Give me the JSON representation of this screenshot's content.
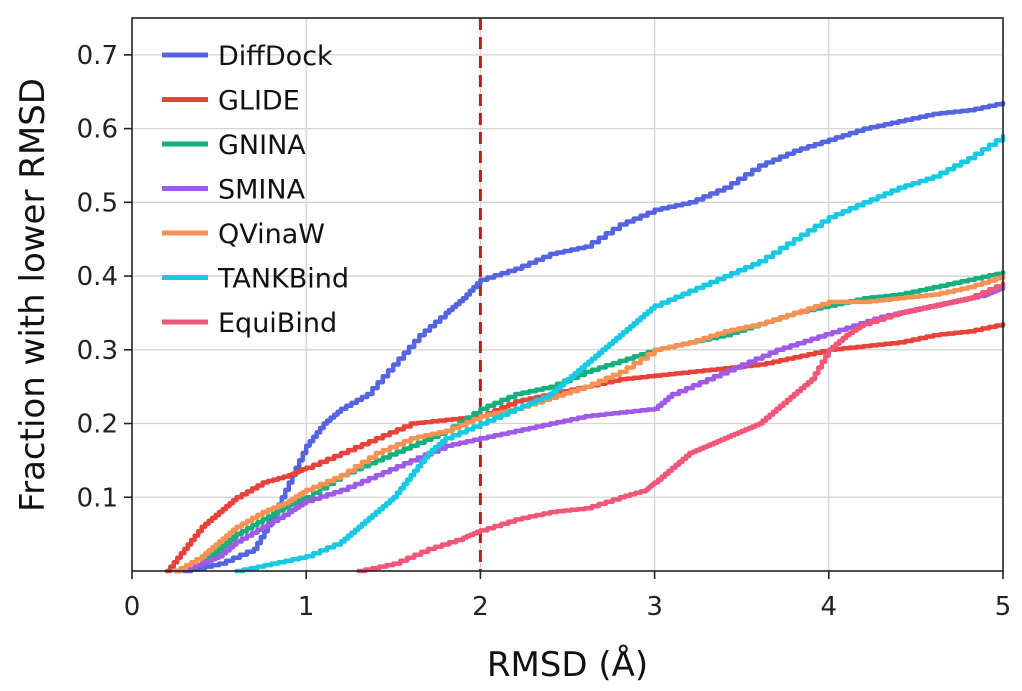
{
  "chart_data": {
    "type": "line",
    "xlabel": "RMSD (Å)",
    "ylabel": "Fraction with lower RMSD",
    "xlim": [
      0,
      5
    ],
    "ylim": [
      0,
      0.75
    ],
    "x_ticks": [
      "0",
      "1",
      "2",
      "3",
      "4",
      "5"
    ],
    "y_ticks": [
      "0.1",
      "0.2",
      "0.3",
      "0.4",
      "0.5",
      "0.6",
      "0.7"
    ],
    "grid": true,
    "legend_position": "top-left",
    "reference_line": {
      "x": 2,
      "style": "dashed",
      "color": "#b22222"
    },
    "series": [
      {
        "name": "DiffDock",
        "color": "#5564e0",
        "points": [
          [
            0.3,
            0.0
          ],
          [
            0.5,
            0.01
          ],
          [
            0.7,
            0.03
          ],
          [
            0.8,
            0.07
          ],
          [
            0.9,
            0.12
          ],
          [
            1.0,
            0.17
          ],
          [
            1.1,
            0.2
          ],
          [
            1.2,
            0.22
          ],
          [
            1.35,
            0.24
          ],
          [
            1.5,
            0.28
          ],
          [
            1.65,
            0.32
          ],
          [
            1.8,
            0.35
          ],
          [
            1.9,
            0.37
          ],
          [
            2.0,
            0.395
          ],
          [
            2.2,
            0.41
          ],
          [
            2.4,
            0.43
          ],
          [
            2.6,
            0.44
          ],
          [
            2.8,
            0.47
          ],
          [
            3.0,
            0.49
          ],
          [
            3.2,
            0.5
          ],
          [
            3.4,
            0.52
          ],
          [
            3.6,
            0.55
          ],
          [
            3.8,
            0.57
          ],
          [
            4.0,
            0.585
          ],
          [
            4.2,
            0.6
          ],
          [
            4.4,
            0.61
          ],
          [
            4.6,
            0.62
          ],
          [
            4.8,
            0.625
          ],
          [
            5.0,
            0.635
          ]
        ]
      },
      {
        "name": "GLIDE",
        "color": "#e8433a",
        "points": [
          [
            0.2,
            0.0
          ],
          [
            0.3,
            0.03
          ],
          [
            0.4,
            0.06
          ],
          [
            0.5,
            0.08
          ],
          [
            0.6,
            0.1
          ],
          [
            0.75,
            0.12
          ],
          [
            0.9,
            0.13
          ],
          [
            1.0,
            0.14
          ],
          [
            1.2,
            0.16
          ],
          [
            1.4,
            0.18
          ],
          [
            1.6,
            0.2
          ],
          [
            1.8,
            0.205
          ],
          [
            2.0,
            0.21
          ],
          [
            2.2,
            0.23
          ],
          [
            2.4,
            0.24
          ],
          [
            2.6,
            0.25
          ],
          [
            2.8,
            0.26
          ],
          [
            3.0,
            0.265
          ],
          [
            3.2,
            0.27
          ],
          [
            3.4,
            0.275
          ],
          [
            3.6,
            0.28
          ],
          [
            3.8,
            0.29
          ],
          [
            4.0,
            0.3
          ],
          [
            4.2,
            0.305
          ],
          [
            4.4,
            0.31
          ],
          [
            4.6,
            0.32
          ],
          [
            4.8,
            0.325
          ],
          [
            5.0,
            0.335
          ]
        ]
      },
      {
        "name": "GNINA",
        "color": "#16b07e",
        "points": [
          [
            0.25,
            0.0
          ],
          [
            0.4,
            0.01
          ],
          [
            0.5,
            0.03
          ],
          [
            0.6,
            0.05
          ],
          [
            0.75,
            0.07
          ],
          [
            0.9,
            0.09
          ],
          [
            1.0,
            0.1
          ],
          [
            1.2,
            0.13
          ],
          [
            1.4,
            0.15
          ],
          [
            1.6,
            0.17
          ],
          [
            1.8,
            0.19
          ],
          [
            2.0,
            0.22
          ],
          [
            2.2,
            0.24
          ],
          [
            2.4,
            0.25
          ],
          [
            2.6,
            0.27
          ],
          [
            2.8,
            0.285
          ],
          [
            3.0,
            0.3
          ],
          [
            3.2,
            0.31
          ],
          [
            3.4,
            0.32
          ],
          [
            3.6,
            0.335
          ],
          [
            3.8,
            0.35
          ],
          [
            4.0,
            0.36
          ],
          [
            4.2,
            0.37
          ],
          [
            4.4,
            0.375
          ],
          [
            4.6,
            0.385
          ],
          [
            4.8,
            0.395
          ],
          [
            5.0,
            0.405
          ]
        ]
      },
      {
        "name": "SMINA",
        "color": "#a05ae8",
        "points": [
          [
            0.25,
            0.0
          ],
          [
            0.4,
            0.01
          ],
          [
            0.5,
            0.02
          ],
          [
            0.6,
            0.04
          ],
          [
            0.75,
            0.06
          ],
          [
            0.9,
            0.08
          ],
          [
            1.0,
            0.095
          ],
          [
            1.2,
            0.11
          ],
          [
            1.4,
            0.13
          ],
          [
            1.6,
            0.15
          ],
          [
            1.8,
            0.17
          ],
          [
            2.0,
            0.18
          ],
          [
            2.2,
            0.19
          ],
          [
            2.4,
            0.2
          ],
          [
            2.6,
            0.21
          ],
          [
            2.8,
            0.215
          ],
          [
            3.0,
            0.22
          ],
          [
            3.1,
            0.24
          ],
          [
            3.3,
            0.26
          ],
          [
            3.5,
            0.28
          ],
          [
            3.7,
            0.3
          ],
          [
            3.9,
            0.315
          ],
          [
            4.1,
            0.33
          ],
          [
            4.3,
            0.345
          ],
          [
            4.5,
            0.355
          ],
          [
            4.7,
            0.365
          ],
          [
            4.9,
            0.375
          ],
          [
            5.0,
            0.385
          ]
        ]
      },
      {
        "name": "QVinaW",
        "color": "#f79255",
        "points": [
          [
            0.25,
            0.0
          ],
          [
            0.4,
            0.02
          ],
          [
            0.5,
            0.04
          ],
          [
            0.6,
            0.06
          ],
          [
            0.75,
            0.08
          ],
          [
            0.9,
            0.095
          ],
          [
            1.0,
            0.11
          ],
          [
            1.2,
            0.13
          ],
          [
            1.4,
            0.16
          ],
          [
            1.6,
            0.18
          ],
          [
            1.8,
            0.19
          ],
          [
            2.0,
            0.21
          ],
          [
            2.2,
            0.22
          ],
          [
            2.4,
            0.235
          ],
          [
            2.6,
            0.25
          ],
          [
            2.8,
            0.27
          ],
          [
            3.0,
            0.3
          ],
          [
            3.2,
            0.31
          ],
          [
            3.4,
            0.325
          ],
          [
            3.6,
            0.335
          ],
          [
            3.8,
            0.35
          ],
          [
            4.0,
            0.365
          ],
          [
            4.2,
            0.365
          ],
          [
            4.4,
            0.37
          ],
          [
            4.6,
            0.375
          ],
          [
            4.8,
            0.385
          ],
          [
            5.0,
            0.4
          ]
        ]
      },
      {
        "name": "TANKBind",
        "color": "#17c9e3",
        "points": [
          [
            0.6,
            0.0
          ],
          [
            0.8,
            0.01
          ],
          [
            1.0,
            0.02
          ],
          [
            1.2,
            0.04
          ],
          [
            1.3,
            0.06
          ],
          [
            1.4,
            0.08
          ],
          [
            1.5,
            0.1
          ],
          [
            1.6,
            0.13
          ],
          [
            1.7,
            0.16
          ],
          [
            1.8,
            0.18
          ],
          [
            2.0,
            0.2
          ],
          [
            2.2,
            0.22
          ],
          [
            2.4,
            0.24
          ],
          [
            2.5,
            0.26
          ],
          [
            2.6,
            0.28
          ],
          [
            2.7,
            0.3
          ],
          [
            2.8,
            0.32
          ],
          [
            2.9,
            0.34
          ],
          [
            3.0,
            0.36
          ],
          [
            3.2,
            0.38
          ],
          [
            3.4,
            0.4
          ],
          [
            3.6,
            0.42
          ],
          [
            3.8,
            0.45
          ],
          [
            4.0,
            0.48
          ],
          [
            4.2,
            0.5
          ],
          [
            4.4,
            0.52
          ],
          [
            4.6,
            0.535
          ],
          [
            4.8,
            0.56
          ],
          [
            5.0,
            0.59
          ]
        ]
      },
      {
        "name": "EquiBind",
        "color": "#f2577a",
        "points": [
          [
            1.3,
            0.0
          ],
          [
            1.5,
            0.01
          ],
          [
            1.7,
            0.03
          ],
          [
            1.9,
            0.045
          ],
          [
            2.0,
            0.055
          ],
          [
            2.2,
            0.07
          ],
          [
            2.4,
            0.08
          ],
          [
            2.6,
            0.085
          ],
          [
            2.8,
            0.1
          ],
          [
            2.95,
            0.11
          ],
          [
            3.0,
            0.12
          ],
          [
            3.1,
            0.14
          ],
          [
            3.2,
            0.16
          ],
          [
            3.3,
            0.17
          ],
          [
            3.4,
            0.18
          ],
          [
            3.5,
            0.19
          ],
          [
            3.6,
            0.2
          ],
          [
            3.7,
            0.22
          ],
          [
            3.8,
            0.24
          ],
          [
            3.9,
            0.26
          ],
          [
            4.0,
            0.3
          ],
          [
            4.1,
            0.32
          ],
          [
            4.2,
            0.335
          ],
          [
            4.4,
            0.35
          ],
          [
            4.6,
            0.36
          ],
          [
            4.8,
            0.37
          ],
          [
            5.0,
            0.39
          ]
        ]
      }
    ]
  }
}
